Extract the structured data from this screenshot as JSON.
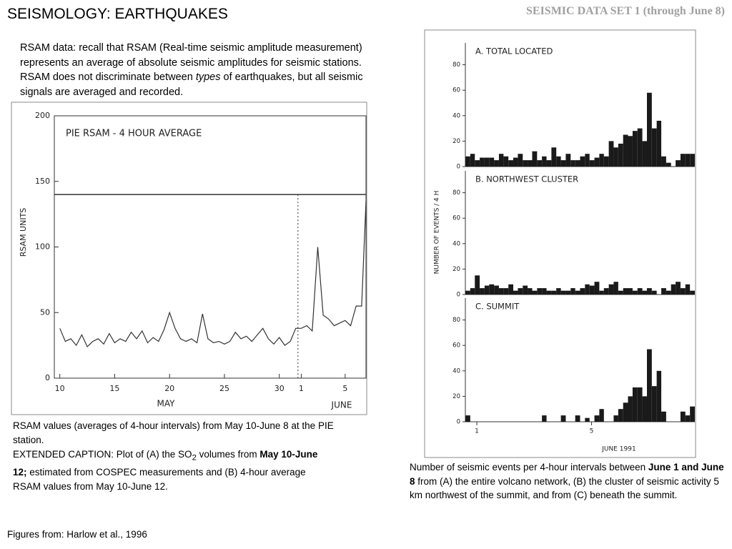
{
  "slide": {
    "title": "SEISMOLOGY: EARTHQUAKES",
    "subtitle": "SEISMIC DATA SET 1 (through June 8)",
    "intro": [
      "RSAM data: recall that RSAM (Real-time seismic amplitude measurement) represents an average of absolute seismic amplitudes for seismic stations. RSAM does not discriminate between ",
      "types",
      " of earthquakes, but all seismic signals are averaged and recorded."
    ],
    "caption_left": "RSAM values (averages of 4-hour intervals) from May 10-June 8 at the PIE station.",
    "caption_extended": [
      "EXTENDED CAPTION: Plot of (A) the SO",
      "2",
      " volumes from ",
      "May 10-June 12;",
      " estimated from COSPEC measurements and (B) 4-hour average RSAM values from May 10-June 12."
    ],
    "caption_right": [
      "Number of seismic events per 4-hour intervals between ",
      "June 1 and June 8",
      " from (A) the entire volcano network, (B) the cluster of seismic activity 5 km northwest of the summit, and from (C) beneath the summit."
    ],
    "footer": "Figures from: Harlow et al., 1996"
  },
  "chart_data": [
    {
      "type": "line",
      "title": "PIE RSAM - 4 HOUR AVERAGE",
      "ylabel": "RSAM UNITS",
      "annotations": [
        "MAY",
        "JUNE"
      ],
      "color": "#333333",
      "x": [
        10,
        10.5,
        11,
        11.5,
        12,
        12.5,
        13,
        13.5,
        14,
        14.5,
        15,
        15.5,
        16,
        16.5,
        17,
        17.5,
        18,
        18.5,
        19,
        19.5,
        20,
        20.5,
        21,
        21.5,
        22,
        22.5,
        23,
        23.5,
        24,
        24.5,
        25,
        25.5,
        26,
        26.5,
        27,
        27.5,
        28,
        28.5,
        29,
        29.5,
        30,
        30.5,
        31,
        31.5,
        32,
        32.5,
        33,
        33.5,
        34,
        34.5,
        35,
        35.5,
        36,
        36.5,
        37,
        37.5,
        37.9
      ],
      "values": [
        38,
        28,
        30,
        25,
        33,
        24,
        28,
        30,
        26,
        34,
        27,
        30,
        28,
        35,
        30,
        36,
        27,
        31,
        28,
        37,
        50,
        38,
        30,
        28,
        30,
        27,
        49,
        30,
        27,
        28,
        26,
        28,
        35,
        30,
        32,
        28,
        33,
        38,
        30,
        26,
        31,
        25,
        28,
        38,
        38,
        40,
        36,
        100,
        48,
        45,
        40,
        42,
        44,
        40,
        55,
        55,
        135
      ],
      "xlim": [
        9.5,
        37.9
      ],
      "ylim": [
        0,
        200
      ],
      "xticks": [
        10,
        15,
        20,
        25,
        30,
        {
          "value": 32,
          "label": "1"
        },
        {
          "value": 36,
          "label": "5"
        }
      ],
      "yticks": [
        0,
        50,
        100,
        150,
        200
      ],
      "hline": 140,
      "vline": 31.7
    },
    {
      "type": "histogram",
      "title": "A.  TOTAL LOCATED",
      "color": "#1a1a1a",
      "bins": [
        0.6,
        0.77,
        0.93,
        1.1,
        1.27,
        1.43,
        1.6,
        1.77,
        1.93,
        2.1,
        2.27,
        2.43,
        2.6,
        2.77,
        2.93,
        3.1,
        3.27,
        3.43,
        3.6,
        3.77,
        3.93,
        4.1,
        4.27,
        4.43,
        4.6,
        4.77,
        4.93,
        5.1,
        5.27,
        5.43,
        5.6,
        5.77,
        5.93,
        6.1,
        6.27,
        6.43,
        6.6,
        6.77,
        6.93,
        7.1,
        7.27,
        7.43,
        7.6,
        7.77,
        7.93,
        8.1,
        8.27,
        8.43,
        8.6
      ],
      "values": [
        8,
        10,
        5,
        7,
        7,
        7,
        5,
        10,
        8,
        5,
        7,
        10,
        5,
        5,
        12,
        5,
        8,
        5,
        15,
        8,
        5,
        10,
        5,
        5,
        8,
        10,
        5,
        7,
        10,
        8,
        20,
        15,
        18,
        25,
        24,
        28,
        30,
        20,
        58,
        30,
        36,
        8,
        3,
        0,
        5,
        10,
        10,
        10
      ],
      "xlim": [
        0.6,
        8.6
      ],
      "ylim": [
        0,
        100
      ],
      "yticks": [
        0,
        20,
        40,
        60,
        80
      ]
    },
    {
      "type": "histogram",
      "title": "B.  NORTHWEST CLUSTER",
      "ylabel": "NUMBER OF EVENTS / 4 H",
      "color": "#1a1a1a",
      "bins": [
        0.6,
        0.77,
        0.93,
        1.1,
        1.27,
        1.43,
        1.6,
        1.77,
        1.93,
        2.1,
        2.27,
        2.43,
        2.6,
        2.77,
        2.93,
        3.1,
        3.27,
        3.43,
        3.6,
        3.77,
        3.93,
        4.1,
        4.27,
        4.43,
        4.6,
        4.77,
        4.93,
        5.1,
        5.27,
        5.43,
        5.6,
        5.77,
        5.93,
        6.1,
        6.27,
        6.43,
        6.6,
        6.77,
        6.93,
        7.1,
        7.27,
        7.43,
        7.6,
        7.77,
        7.93,
        8.1,
        8.27,
        8.43,
        8.6
      ],
      "values": [
        3,
        5,
        15,
        5,
        7,
        8,
        7,
        5,
        5,
        8,
        3,
        5,
        7,
        5,
        3,
        5,
        5,
        3,
        3,
        5,
        3,
        3,
        5,
        3,
        5,
        8,
        7,
        10,
        3,
        5,
        8,
        10,
        3,
        5,
        5,
        3,
        5,
        3,
        5,
        3,
        0,
        5,
        3,
        8,
        10,
        5,
        8,
        3
      ],
      "xlim": [
        0.6,
        8.6
      ],
      "ylim": [
        0,
        100
      ],
      "yticks": [
        0,
        20,
        40,
        60,
        80
      ]
    },
    {
      "type": "histogram",
      "title": "C.  SUMMIT",
      "xlabel": "JUNE 1991",
      "color": "#1a1a1a",
      "bins": [
        0.6,
        0.77,
        0.93,
        1.1,
        1.27,
        1.43,
        1.6,
        1.77,
        1.93,
        2.1,
        2.27,
        2.43,
        2.6,
        2.77,
        2.93,
        3.1,
        3.27,
        3.43,
        3.6,
        3.77,
        3.93,
        4.1,
        4.27,
        4.43,
        4.6,
        4.77,
        4.93,
        5.1,
        5.27,
        5.43,
        5.6,
        5.77,
        5.93,
        6.1,
        6.27,
        6.43,
        6.6,
        6.77,
        6.93,
        7.1,
        7.27,
        7.43,
        7.6,
        7.77,
        7.93,
        8.1,
        8.27,
        8.43,
        8.6
      ],
      "values": [
        5,
        0,
        0,
        0,
        0,
        0,
        0,
        0,
        0,
        0,
        0,
        0,
        0,
        0,
        0,
        0,
        5,
        0,
        0,
        0,
        5,
        0,
        0,
        5,
        0,
        3,
        0,
        5,
        10,
        0,
        0,
        5,
        10,
        15,
        20,
        27,
        27,
        20,
        57,
        28,
        40,
        8,
        0,
        0,
        0,
        8,
        5,
        12
      ],
      "xlim": [
        0.6,
        8.6
      ],
      "ylim": [
        0,
        100
      ],
      "yticks": [
        0,
        20,
        40,
        60,
        80
      ],
      "xticks": [
        1,
        5
      ]
    }
  ]
}
